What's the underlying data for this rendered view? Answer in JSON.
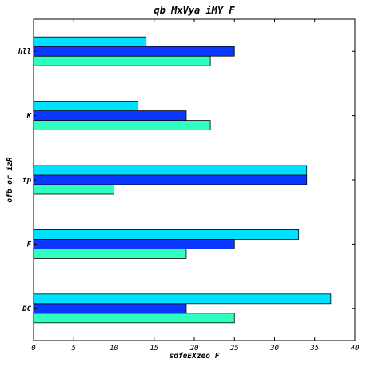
{
  "chart_data": {
    "type": "bar",
    "orientation": "horizontal",
    "title": "qb MxVya iMY F",
    "xlabel": "sdfeEXzeo F",
    "ylabel": "ofb or izR",
    "categories": [
      "DC",
      "F",
      "tp",
      "K",
      "hll"
    ],
    "xlim": [
      0,
      40
    ],
    "xticks": [
      0,
      5,
      10,
      15,
      20,
      25,
      30,
      35,
      40
    ],
    "grid": false,
    "series": [
      {
        "color": "#2effc0",
        "values": [
          25,
          19,
          10,
          22,
          22
        ]
      },
      {
        "color": "#0c37ff",
        "values": [
          19,
          25,
          34,
          19,
          25
        ]
      },
      {
        "color": "#00e0ff",
        "values": [
          37,
          33,
          34,
          13,
          14
        ]
      }
    ]
  }
}
